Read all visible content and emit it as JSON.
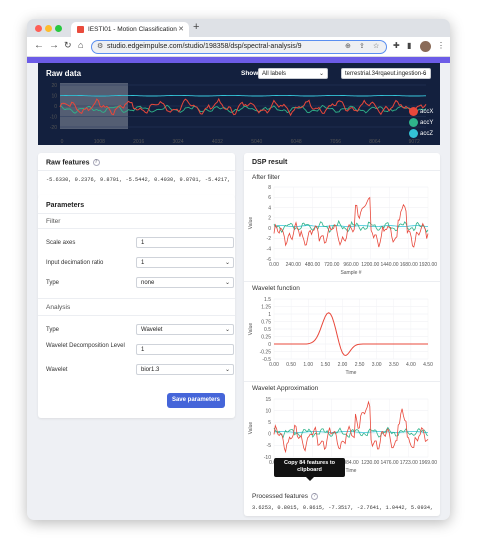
{
  "browser": {
    "tab_title": "IESTI01 - Motion Classification",
    "url": "studio.edgeimpulse.com/studio/198358/dsp/spectral-analysis/9"
  },
  "raw_data": {
    "title": "Raw data",
    "show_label": "Show:",
    "show_value": "All labels",
    "sample_value": "terrestrial.34rqaeut.ingestion-6",
    "y_ticks": [
      "20",
      "10",
      "0",
      "-10",
      "-20"
    ],
    "x_ticks": [
      "0",
      "1008",
      "2016",
      "3024",
      "4032",
      "5040",
      "6048",
      "7056",
      "8064",
      "9072"
    ],
    "legend": [
      {
        "name": "accX",
        "color": "#e8483b"
      },
      {
        "name": "accY",
        "color": "#2fb38a"
      },
      {
        "name": "accZ",
        "color": "#33c2d6"
      }
    ]
  },
  "raw_features": {
    "title": "Raw features",
    "values": "-5.6330, 0.2376, 9.8701, -5.5442, 0.4030, 9.8701, -5.4217, 0.5433, ..."
  },
  "parameters": {
    "title": "Parameters",
    "filter_section": "Filter",
    "scale_axes_label": "Scale axes",
    "scale_axes_value": "1",
    "decimation_label": "Input decimation ratio",
    "decimation_value": "1",
    "filter_type_label": "Type",
    "filter_type_value": "none",
    "analysis_section": "Analysis",
    "analysis_type_label": "Type",
    "analysis_type_value": "Wavelet",
    "decomp_label": "Wavelet Decomposition Level",
    "decomp_value": "1",
    "wavelet_label": "Wavelet",
    "wavelet_value": "bior1.3",
    "save_label": "Save parameters"
  },
  "dsp_result": {
    "title": "DSP result",
    "after_filter": {
      "title": "After filter",
      "ylabel": "Value",
      "xlabel": "Sample #",
      "y_ticks": [
        "8",
        "6",
        "4",
        "2",
        "0",
        "-2",
        "-4",
        "-6"
      ],
      "x_ticks": [
        "0.00",
        "240.00",
        "480.00",
        "720.00",
        "960.00",
        "1200.00",
        "1440.00",
        "1680.00",
        "1920.00"
      ]
    },
    "wavelet_function": {
      "title": "Wavelet function",
      "ylabel": "Value",
      "xlabel": "Time",
      "y_ticks": [
        "1.5",
        "1.25",
        "1",
        "0.75",
        "0.5",
        "0.25",
        "0",
        "-0.25",
        "-0.5"
      ],
      "x_ticks": [
        "0.00",
        "0.50",
        "1.00",
        "1.50",
        "2.00",
        "2.50",
        "3.00",
        "3.50",
        "4.00",
        "4.50"
      ]
    },
    "wavelet_approx": {
      "title": "Wavelet Approximation",
      "ylabel": "Value",
      "xlabel": "Time",
      "y_ticks": [
        "15",
        "10",
        "5",
        "0",
        "-5",
        "-10"
      ],
      "x_ticks": [
        "0.00",
        "246.00",
        "492.00",
        "738.00",
        "984.00",
        "1230.00",
        "1476.00",
        "1723.00",
        "1969.00"
      ]
    },
    "tooltip": "Copy 84 features to clipboard",
    "processed_title": "Processed features",
    "processed_values": "3.6253, 0.8015, 0.8615, -7.3517, -2.7641, 1.0442, 5.0934, 0.4863, ..."
  },
  "colors": {
    "accent": "#6c5ce7",
    "panel_dark": "#13203e",
    "primary_button": "#4565d9",
    "series_x": "#e8483b",
    "series_y": "#2fb38a",
    "series_z": "#33c2d6"
  }
}
